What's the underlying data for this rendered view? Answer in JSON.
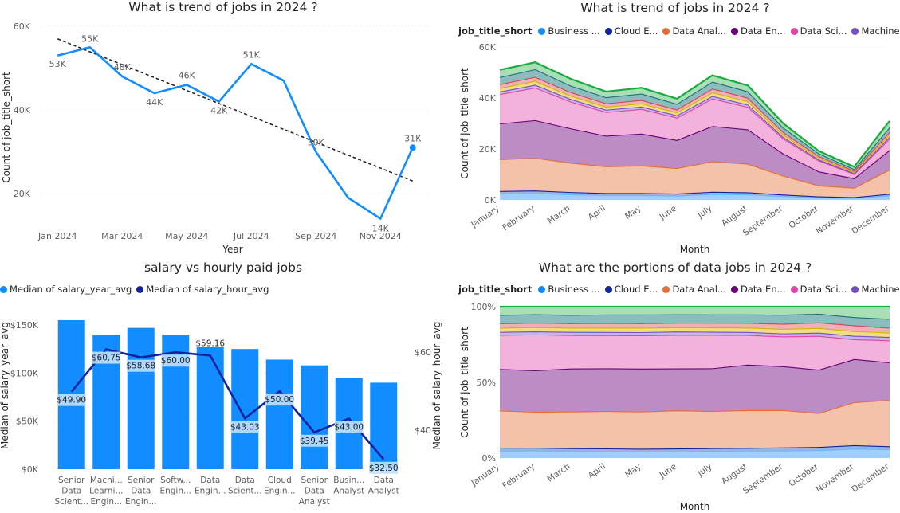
{
  "charts": {
    "trend": {
      "title": "What is trend of jobs in 2024 ?"
    },
    "stacked": {
      "title": "What is trend of jobs in 2024 ?"
    },
    "salary": {
      "title": "salary vs hourly paid jobs"
    },
    "portions": {
      "title": "What are the portions of data jobs in 2024 ?"
    }
  },
  "legend": {
    "title": "job_title_short",
    "items": [
      {
        "label": "Business ...",
        "color": "#118DFF"
      },
      {
        "label": "Cloud E...",
        "color": "#12239E"
      },
      {
        "label": "Data Anal...",
        "color": "#E66C37"
      },
      {
        "label": "Data En...",
        "color": "#6B007B"
      },
      {
        "label": "Data Sci...",
        "color": "#E044A7"
      },
      {
        "label": "Machine ...",
        "color": "#744EC2"
      }
    ]
  },
  "salary_legend": [
    {
      "label": "Median of salary_year_avg",
      "color": "#118DFF"
    },
    {
      "label": "Median of salary_hour_avg",
      "color": "#12239E"
    }
  ],
  "chart_data": [
    {
      "type": "line",
      "title": "What is trend of jobs in 2024 ?",
      "xlabel": "Year",
      "ylabel": "Count of job_title_short",
      "x_ticks": [
        "Jan 2024",
        "Mar 2024",
        "May 2024",
        "Jul 2024",
        "Sep 2024",
        "Nov 2024"
      ],
      "y_ticks": [
        "20K",
        "40K",
        "60K"
      ],
      "ylim": [
        12000,
        60000
      ],
      "series": [
        {
          "values": [
            53000,
            55000,
            48000,
            44000,
            46000,
            42000,
            51000,
            47000,
            30000,
            19000,
            14000,
            31000
          ],
          "labels": [
            "53K",
            "55K",
            "48K",
            "44K",
            "46K",
            "42K",
            "51K",
            "",
            "30K",
            "",
            "14K",
            "31K"
          ]
        }
      ],
      "trendline": [
        57000,
        23000
      ],
      "color": "#118DFF",
      "grid": true
    },
    {
      "type": "area",
      "title": "What is trend of jobs in 2024 ?",
      "xlabel": "Month",
      "ylabel": "Count of job_title_short",
      "categories": [
        "January",
        "February",
        "March",
        "April",
        "May",
        "June",
        "July",
        "August",
        "September",
        "October",
        "November",
        "December"
      ],
      "y_ticks": [
        "0K",
        "20K",
        "40K",
        "60K"
      ],
      "ylim": [
        0,
        60000
      ],
      "stacked": true,
      "series": [
        {
          "name": "Business ...",
          "values": [
            2500,
            2700,
            2200,
            1900,
            1900,
            1700,
            2300,
            2200,
            1500,
            1000,
            800,
            1800
          ]
        },
        {
          "name": "Cloud E...",
          "values": [
            1000,
            1000,
            900,
            800,
            800,
            800,
            900,
            800,
            600,
            400,
            300,
            600
          ]
        },
        {
          "name": "Data Anal...",
          "values": [
            12500,
            12800,
            11500,
            10500,
            10800,
            10000,
            12000,
            11200,
            7400,
            4300,
            3700,
            9500
          ]
        },
        {
          "name": "Data En...",
          "values": [
            14000,
            14800,
            13500,
            12000,
            12500,
            11000,
            13800,
            13500,
            8700,
            5500,
            3700,
            7700
          ]
        },
        {
          "name": "Data Sci...",
          "values": [
            11500,
            12800,
            10500,
            9300,
            9700,
            8800,
            10800,
            8800,
            5900,
            4300,
            1700,
            4500
          ]
        },
        {
          "name": "Machine ...",
          "values": [
            1000,
            1100,
            1000,
            900,
            900,
            900,
            1000,
            900,
            600,
            400,
            300,
            700
          ]
        },
        {
          "name": "",
          "values": [
            1400,
            1500,
            1300,
            1200,
            1300,
            1100,
            1400,
            1300,
            900,
            600,
            400,
            900
          ]
        },
        {
          "name": "",
          "values": [
            1500,
            1600,
            1400,
            1300,
            1300,
            1200,
            1500,
            1400,
            1000,
            700,
            500,
            1000
          ]
        },
        {
          "name": "",
          "values": [
            2800,
            3000,
            2600,
            2400,
            2500,
            2200,
            2700,
            2500,
            1800,
            1100,
            700,
            1800
          ]
        },
        {
          "name": "",
          "values": [
            2800,
            2700,
            2600,
            2200,
            2300,
            2000,
            2500,
            2300,
            1600,
            900,
            900,
            2500
          ]
        }
      ],
      "series_colors": [
        "#67B8FF",
        "#12239E",
        "#E66C37",
        "#6B007B",
        "#E044A7",
        "#744EC2",
        "#D9B300",
        "#D64550",
        "#197278",
        "#1AAB40"
      ],
      "fill_colors": [
        "#9ECFFF",
        "#A7AEDB",
        "#F4C2A9",
        "#BC8CC4",
        "#F2B2DB",
        "#C7B6E8",
        "#F0DD88",
        "#EEB1B6",
        "#8DBCBF",
        "#A8DFB5"
      ]
    },
    {
      "type": "bar",
      "title": "salary vs hourly paid jobs",
      "ylabel": "Median of salary_year_avg",
      "ylabel_right": "Median of salary_hour_avg",
      "categories": [
        "Senior Data Scient...",
        "Machi... Learni... Engin...",
        "Senior Data Engin...",
        "Softw... Engin...",
        "Data Engin...",
        "Data Scient...",
        "Cloud Engin...",
        "Senior Data Analyst",
        "Busin... Analyst",
        "Data Analyst"
      ],
      "y_ticks": [
        "$0K",
        "$50K",
        "$100K",
        "$150K"
      ],
      "ylim": [
        0,
        150000
      ],
      "y_right_ticks": [
        "$40",
        "$60"
      ],
      "ylim_right": [
        30,
        67
      ],
      "series": [
        {
          "name": "Median of salary_year_avg",
          "type": "bar",
          "values": [
            155000,
            140000,
            147000,
            140000,
            127000,
            125000,
            114000,
            108000,
            95000,
            90000
          ]
        },
        {
          "name": "Median of salary_hour_avg",
          "type": "line",
          "values": [
            49.9,
            60.75,
            58.68,
            60.0,
            59.16,
            43.03,
            50.0,
            39.45,
            43.0,
            32.5
          ],
          "labels": [
            "$49.90",
            "$60.75",
            "$58.68",
            "$60.00",
            "$59.16",
            "$43.03",
            "$50.00",
            "$39.45",
            "$43.00",
            "$32.50"
          ]
        }
      ]
    },
    {
      "type": "area",
      "title": "What are the portions of data jobs in 2024 ?",
      "xlabel": "Month",
      "ylabel": "Count of job_title_short",
      "categories": [
        "January",
        "February",
        "March",
        "April",
        "May",
        "June",
        "July",
        "August",
        "September",
        "October",
        "November",
        "December"
      ],
      "y_ticks": [
        "0%",
        "50%",
        "100%"
      ],
      "ylim": [
        0,
        100
      ],
      "stacked_percent": true,
      "series_ref": "same series as the stacked area chart"
    }
  ]
}
